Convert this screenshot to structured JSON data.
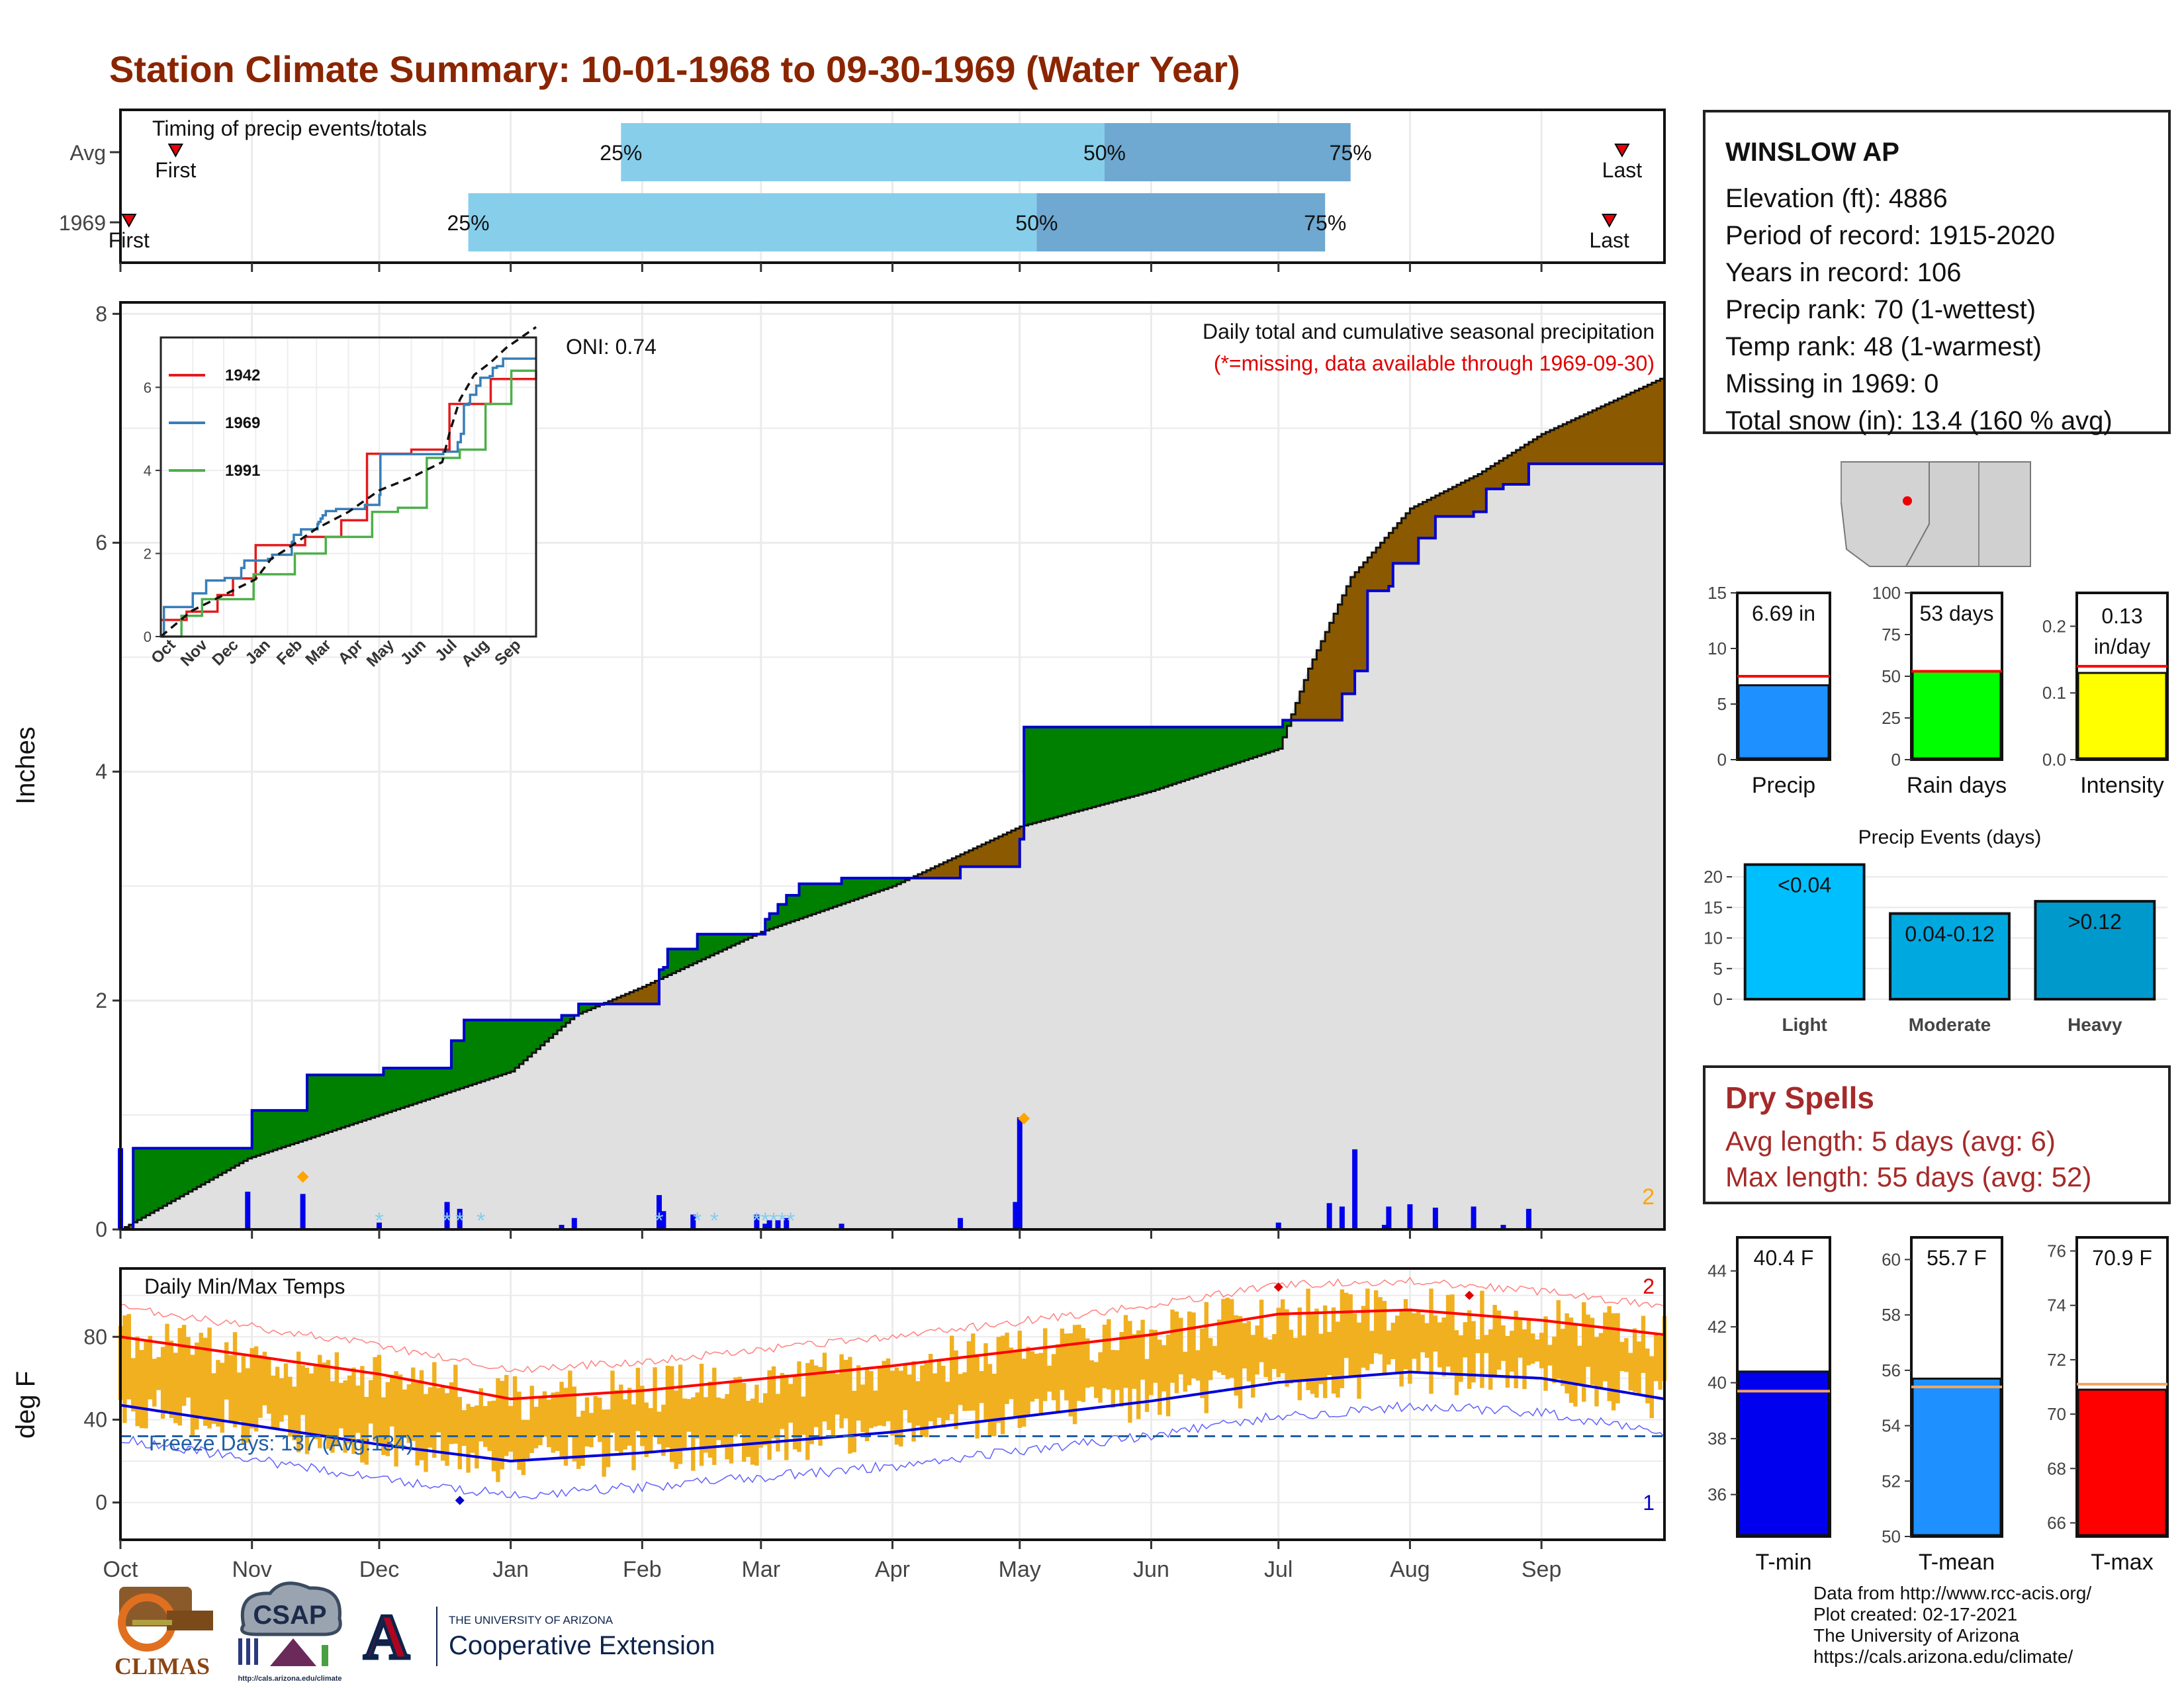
{
  "title": "Station Climate Summary: 10-01-1968 to 09-30-1969 (Water Year)",
  "timing": {
    "label": "Timing of precip events/totals",
    "rows": [
      {
        "name": "Avg",
        "first_day": 13,
        "last_day": 354,
        "p25": 118,
        "p50": 232,
        "p75": 290,
        "first_label": "First",
        "last_label": "Last"
      },
      {
        "name": "1969",
        "first_day": 2,
        "last_day": 351,
        "p25": 82,
        "p50": 216,
        "p75": 284,
        "first_label": "First",
        "last_label": "Last"
      }
    ],
    "pct_labels": [
      "25%",
      "50%",
      "75%"
    ],
    "colors": {
      "light": "#87ceeb",
      "dark": "#6fa8d0",
      "marker": "#e8000b"
    }
  },
  "precip_panel": {
    "ylabel": "Inches",
    "yticks": [
      0,
      2,
      4,
      6,
      8
    ],
    "ylim": [
      0,
      8.1
    ],
    "annotation_title": "Daily total and cumulative seasonal precipitation",
    "annotation_missing": "(*=missing, data available through 1969-09-30)",
    "oni": "ONI: 0.74",
    "rank_marker": "2",
    "colors": {
      "above": "#008000",
      "below": "#8b5a00",
      "normal_fill": "#e0e0e0",
      "line": "#0000cc",
      "bar": "#0000ee",
      "snow": "#87ceeb",
      "max": "#ffa500"
    }
  },
  "inset": {
    "yticks": [
      0,
      2,
      4,
      6
    ],
    "ylim": [
      0,
      7.2
    ],
    "months": [
      "Oct",
      "Nov",
      "Dec",
      "Jan",
      "Feb",
      "Mar",
      "Apr",
      "May",
      "Jun",
      "Jul",
      "Aug",
      "Sep"
    ],
    "legend": [
      {
        "name": "1942",
        "color": "#e41a1c"
      },
      {
        "name": "1969",
        "color": "#377eb8"
      },
      {
        "name": "1991",
        "color": "#4daf4a"
      }
    ]
  },
  "temp_panel": {
    "ylabel": "deg F",
    "yticks": [
      0,
      40,
      80
    ],
    "ylim": [
      -18,
      113
    ],
    "label": "Daily Min/Max Temps",
    "freeze_label": "Freeze Days: 137 (Avg:134)",
    "freeze_line": 32,
    "top_marker": "2",
    "bottom_marker": "1",
    "colors": {
      "bars": "#f0b020",
      "max_avg": "#ff0000",
      "min_avg": "#0000dd",
      "freeze": "#1f5fa8"
    }
  },
  "x_months": [
    "Oct",
    "Nov",
    "Dec",
    "Jan",
    "Feb",
    "Mar",
    "Apr",
    "May",
    "Jun",
    "Jul",
    "Aug",
    "Sep"
  ],
  "month_start_days": [
    0,
    31,
    61,
    92,
    123,
    151,
    182,
    212,
    243,
    273,
    304,
    335
  ],
  "station": {
    "name": "WINSLOW AP",
    "lines": [
      "Elevation (ft): 4886",
      "Period of record: 1915-2020",
      "Years in record: 106",
      "Precip rank: 70 (1-wettest)",
      "Temp rank: 48 (1-warmest)",
      "Missing in 1969: 0",
      "Total snow (in): 13.4 (160 % avg)"
    ]
  },
  "chart_data": [
    {
      "type": "line",
      "title": "Daily total and cumulative seasonal precipitation",
      "ylabel": "Inches",
      "ylim": [
        0,
        8.1
      ],
      "x_unit": "day of water year (0 = Oct 1)",
      "series": [
        {
          "name": "1969",
          "x": [
            0,
            3,
            30,
            31,
            43,
            44,
            61,
            62,
            77,
            78,
            80,
            81,
            100,
            104,
            107,
            108,
            122,
            127,
            128,
            129,
            135,
            136,
            150,
            152,
            153,
            155,
            157,
            160,
            170,
            174,
            180,
            190,
            198,
            211,
            212,
            213,
            251,
            273,
            274,
            285,
            288,
            291,
            294,
            298,
            299,
            300,
            304,
            306,
            310,
            319,
            322,
            326,
            332,
            364
          ],
          "y": [
            0.0,
            0.71,
            0.71,
            1.04,
            1.04,
            1.35,
            1.35,
            1.41,
            1.41,
            1.65,
            1.65,
            1.83,
            1.83,
            1.87,
            1.87,
            1.97,
            1.97,
            2.27,
            2.29,
            2.45,
            2.45,
            2.58,
            2.58,
            2.71,
            2.76,
            2.84,
            2.92,
            3.02,
            3.07,
            3.07,
            3.07,
            3.07,
            3.17,
            3.17,
            3.41,
            4.39,
            4.39,
            4.39,
            4.45,
            4.45,
            4.68,
            4.88,
            5.58,
            5.58,
            5.62,
            5.82,
            5.82,
            6.04,
            6.23,
            6.27,
            6.47,
            6.51,
            6.69,
            6.69
          ]
        },
        {
          "name": "Average",
          "x": [
            0,
            30,
            61,
            92,
            107,
            123,
            151,
            182,
            212,
            243,
            273,
            280,
            290,
            304,
            320,
            335,
            364
          ],
          "y": [
            0.0,
            0.62,
            1.0,
            1.38,
            1.87,
            2.12,
            2.6,
            3.0,
            3.52,
            3.83,
            4.2,
            4.9,
            5.7,
            6.3,
            6.6,
            6.95,
            7.45
          ]
        }
      ]
    },
    {
      "type": "bar",
      "title": "Timing of precip events/totals",
      "categories": [
        "Avg",
        "1969"
      ],
      "series": [
        {
          "name": "First",
          "values": [
            13,
            2
          ]
        },
        {
          "name": "25%",
          "values": [
            118,
            82
          ]
        },
        {
          "name": "50%",
          "values": [
            232,
            216
          ]
        },
        {
          "name": "75%",
          "values": [
            290,
            284
          ]
        },
        {
          "name": "Last",
          "values": [
            354,
            351
          ]
        }
      ]
    },
    {
      "type": "bar",
      "categories": [
        "Precip",
        "Rain days",
        "Intensity"
      ],
      "series": [
        {
          "name": "1969",
          "values": [
            6.69,
            53,
            0.13
          ]
        },
        {
          "name": "Average",
          "values": [
            7.5,
            53,
            0.14
          ]
        }
      ],
      "value_labels": [
        "6.69 in",
        "53 days",
        "0.13 in/day"
      ]
    },
    {
      "type": "bar",
      "title": "Precip Events (days)",
      "categories": [
        "Light",
        "Moderate",
        "Heavy"
      ],
      "values": [
        22,
        14,
        16
      ],
      "bar_labels": [
        "<0.04",
        "0.04-0.12",
        ">0.12"
      ],
      "ylim": [
        0,
        22.5
      ]
    },
    {
      "type": "bar",
      "categories": [
        "T-min",
        "T-mean",
        "T-max"
      ],
      "series": [
        {
          "name": "1969",
          "values": [
            40.4,
            55.7,
            70.9
          ]
        },
        {
          "name": "Average",
          "values": [
            39.7,
            55.4,
            71.1
          ]
        }
      ],
      "value_labels": [
        "40.4 F",
        "55.7 F",
        "70.9 F"
      ]
    },
    {
      "type": "area",
      "title": "Daily Min/Max Temps",
      "ylabel": "deg F",
      "ylim": [
        -18,
        113
      ],
      "series": [
        {
          "name": "Avg max",
          "x": [
            0,
            61,
            92,
            123,
            182,
            243,
            273,
            304,
            335,
            364
          ],
          "y": [
            80,
            62,
            50,
            54,
            66,
            81,
            91,
            93,
            88,
            81
          ]
        },
        {
          "name": "Avg min",
          "x": [
            0,
            61,
            92,
            123,
            182,
            243,
            273,
            304,
            335,
            364
          ],
          "y": [
            47,
            28,
            20,
            24,
            34,
            49,
            58,
            63,
            60,
            50
          ]
        }
      ]
    }
  ],
  "mini": {
    "precip": {
      "ylabel": "",
      "xlabel": "Precip",
      "yticks": [
        0,
        5,
        10,
        15
      ],
      "ylim": [
        0,
        15
      ],
      "value": 6.69,
      "avg": 7.5,
      "label": "6.69 in",
      "color": "#1e90ff"
    },
    "raindays": {
      "ylabel": "",
      "xlabel": "Rain days",
      "yticks": [
        0,
        25,
        50,
        75,
        100
      ],
      "ylim": [
        0,
        100
      ],
      "value": 53,
      "avg": 53,
      "label": "53 days",
      "color": "#00ff00"
    },
    "intensity": {
      "ylabel": "",
      "xlabel": "Intensity",
      "yticks": [
        0.0,
        0.1,
        0.2
      ],
      "ylim": [
        0,
        0.25
      ],
      "value": 0.13,
      "avg": 0.14,
      "label1": "0.13",
      "label2": "in/day",
      "color": "#ffff00"
    },
    "events": {
      "title": "Precip Events (days)",
      "yticks": [
        0,
        5,
        10,
        15,
        20
      ],
      "ylim": [
        0,
        22.5
      ],
      "bars": [
        {
          "cat": "Light",
          "label": "<0.04",
          "value": 22,
          "color": "#00bfff"
        },
        {
          "cat": "Moderate",
          "label": "0.04-0.12",
          "value": 14,
          "color": "#00a8e0"
        },
        {
          "cat": "Heavy",
          "label": ">0.12",
          "value": 16,
          "color": "#0099cc"
        }
      ]
    },
    "tmin": {
      "xlabel": "T-min",
      "yticks": [
        36,
        38,
        40,
        42,
        44
      ],
      "ylim": [
        34.5,
        45.2
      ],
      "value": 40.4,
      "avg": 39.7,
      "label": "40.4 F",
      "color": "#0000ee"
    },
    "tmean": {
      "xlabel": "T-mean",
      "yticks": [
        50,
        52,
        54,
        56,
        58,
        60
      ],
      "ylim": [
        50,
        60.8
      ],
      "value": 55.7,
      "avg": 55.4,
      "label": "55.7 F",
      "color": "#1e90ff"
    },
    "tmax": {
      "xlabel": "T-max",
      "yticks": [
        66,
        68,
        70,
        72,
        74,
        76
      ],
      "ylim": [
        65.5,
        76.5
      ],
      "value": 70.9,
      "avg": 71.1,
      "label": "70.9 F",
      "color": "#ff0000"
    }
  },
  "dry_spells": {
    "title": "Dry Spells",
    "avg_line": "Avg length: 5 days (avg: 6)",
    "max_line": "Max length: 55 days (avg: 52)"
  },
  "credits": {
    "lines": [
      "Data from http://www.rcc-acis.org/",
      "Plot created: 02-17-2021",
      "The University of Arizona",
      "https://cals.arizona.edu/climate/"
    ]
  },
  "logos": {
    "climas": "CLIMAS",
    "csap": "CSAP",
    "csap_url": "http://cals.arizona.edu/climate",
    "ua_small": "THE UNIVERSITY OF ARIZONA",
    "ua_big": "Cooperative Extension",
    "ua_letter": "A"
  }
}
